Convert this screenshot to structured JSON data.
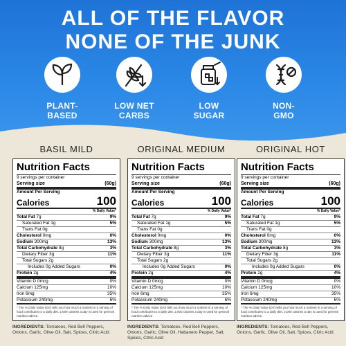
{
  "header": {
    "line1": "ALL OF THE FLAVOR",
    "line2": "NONE OF THE JUNK"
  },
  "features": [
    {
      "label": "PLANT-\nBASED",
      "icon": "leaf-sprout-icon"
    },
    {
      "label": "LOW NET\nCARBS",
      "icon": "wheat-down-arrow-icon"
    },
    {
      "label": "LOW\nSUGAR",
      "icon": "sugar-jar-icon"
    },
    {
      "label": "NON-\nGMO",
      "icon": "dna-no-icon"
    }
  ],
  "common": {
    "nf_title": "Nutrition Facts",
    "servings": "9 servings per container",
    "serving_size_label": "Serving size",
    "serving_size": "(60g)",
    "amount_per_serving": "Amount Per Serving",
    "calories_label": "Calories",
    "calories": "100",
    "dv_header": "% Daily Value*",
    "rows": {
      "total_fat": "Total Fat",
      "sat_fat": "Saturated Fat",
      "trans_fat": "Trans Fat",
      "cholesterol": "Cholesterol",
      "sodium": "Sodium",
      "carb": "Total Carbohydrate",
      "fiber": "Dietary Fiber",
      "sugars": "Total Sugars",
      "added": "Includes 0g Added Sugars",
      "protein": "Protein",
      "vitd": "Vitamin D",
      "calcium": "Calcium",
      "iron": "Iron",
      "potassium": "Potassium"
    },
    "values": {
      "total_fat": "7g",
      "total_fat_dv": "9%",
      "sat_fat": "1g",
      "sat_fat_dv": "5%",
      "trans_fat": "0g",
      "cholesterol": "0mg",
      "cholesterol_dv": "0%",
      "sodium": "300mg",
      "sodium_dv": "13%",
      "carb": "8g",
      "carb_dv": "3%",
      "fiber": "3g",
      "fiber_dv": "11%",
      "sugars": "2g",
      "added_dv": "0%",
      "protein": "2g",
      "protein_dv": "4%",
      "vitd": "0mcg",
      "vitd_dv": "0%",
      "calcium": "125mg",
      "calcium_dv": "10%",
      "iron": "6mg",
      "iron_dv": "35%",
      "potassium": "240mg",
      "potassium_dv": "6%"
    },
    "footnote": "* The % Daily Value (DV) tells you how much a nutrient in a serving of food contributes to a daily diet. 2,000 calories a day is used for general nutrition advice.",
    "ingredients_label": "INGREDIENTS:"
  },
  "products": [
    {
      "name": "BASIL MILD",
      "ingredients": "Tomatoes, Red Bell Peppers, Onions, Garlic, Olive Oil, Salt, Spices, Citric Acid"
    },
    {
      "name": "ORIGINAL MEDIUM",
      "ingredients": "Tomatoes, Red Bell Peppers, Onions, Garlic, Olive Oil, Habanero Pepper, Salt, Spices, Citric Acid"
    },
    {
      "name": "ORIGINAL HOT",
      "ingredients": "Tomatoes, Red Bell Peppers, Onions, Garlic, Olive Oil, Salt, Spices, Citric Acid"
    }
  ],
  "colors": {
    "blue": "#2a87e6",
    "cream": "#ece7d9"
  }
}
